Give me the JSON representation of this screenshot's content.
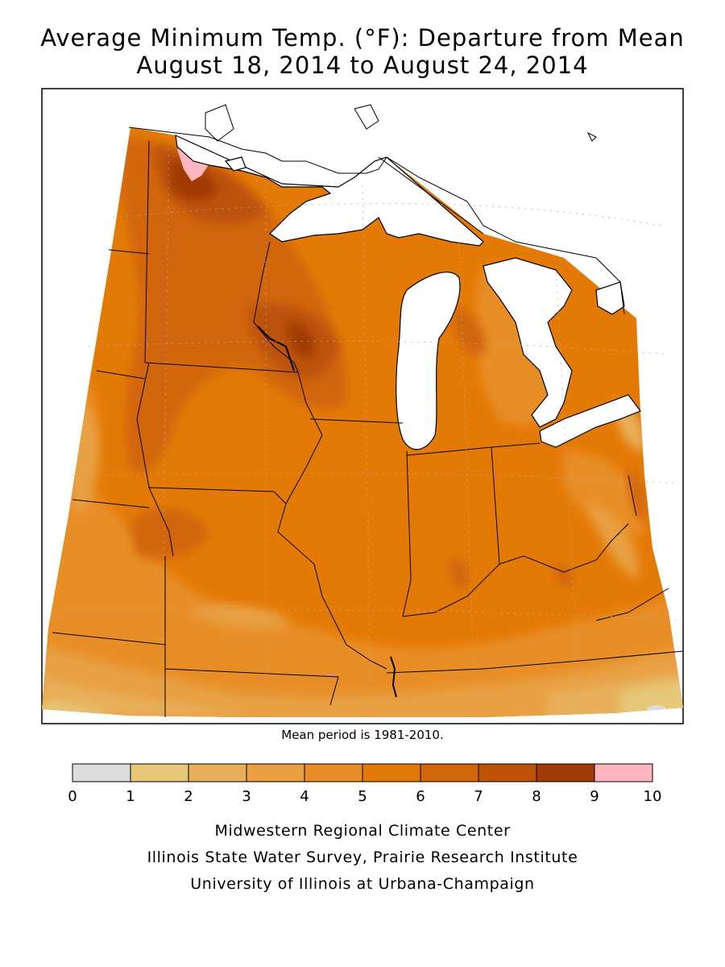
{
  "title": {
    "line1": "Average Minimum Temp. (°F): Departure from Mean",
    "line2": "August 18, 2014 to August 24, 2014"
  },
  "note": "Mean period is 1981-2010.",
  "legend": {
    "bins": [
      {
        "from": 0,
        "to": 1,
        "color": "#dcdcdc"
      },
      {
        "from": 1,
        "to": 2,
        "color": "#e6c878"
      },
      {
        "from": 2,
        "to": 3,
        "color": "#e8b05a"
      },
      {
        "from": 3,
        "to": 4,
        "color": "#e8a042"
      },
      {
        "from": 4,
        "to": 5,
        "color": "#e88e26"
      },
      {
        "from": 5,
        "to": 6,
        "color": "#e47a06"
      },
      {
        "from": 6,
        "to": 7,
        "color": "#d26608"
      },
      {
        "from": 7,
        "to": 8,
        "color": "#bc5208"
      },
      {
        "from": 8,
        "to": 9,
        "color": "#a03a06"
      },
      {
        "from": 9,
        "to": 10,
        "color": "#ffb6c1"
      }
    ],
    "ticks": [
      "0",
      "1",
      "2",
      "3",
      "4",
      "5",
      "6",
      "7",
      "8",
      "9",
      "10"
    ]
  },
  "credits": [
    "Midwestern Regional Climate Center",
    "Illinois State Water Survey, Prairie Research Institute",
    "University of Illinois at Urbana-Champaign"
  ]
}
